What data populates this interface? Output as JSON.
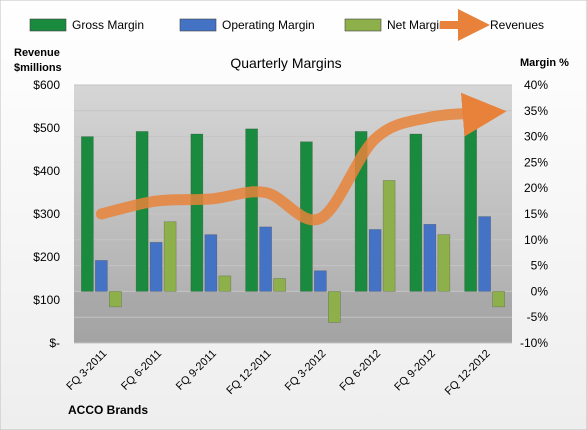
{
  "chart_data": {
    "type": "bar",
    "title": "Quarterly Margins",
    "company": "ACCO Brands",
    "left_axis_label": [
      "Revenue",
      "$millions"
    ],
    "right_axis_label": "Margin %",
    "left_ticks": [
      "$-",
      "$100",
      "$200",
      "$300",
      "$400",
      "$500",
      "$600"
    ],
    "right_ticks": [
      "-10%",
      "-5%",
      "0%",
      "5%",
      "10%",
      "15%",
      "20%",
      "25%",
      "30%",
      "35%",
      "40%"
    ],
    "ylim_left": [
      0,
      600
    ],
    "ylim_right": [
      -10,
      40
    ],
    "categories": [
      "FQ 3-2011",
      "FQ 6-2011",
      "FQ 9-2011",
      "FQ 12-2011",
      "FQ 3-2012",
      "FQ 6-2012",
      "FQ 9-2012",
      "FQ 12-2012"
    ],
    "series": [
      {
        "name": "Gross Margin",
        "axis": "right",
        "kind": "bar",
        "color": "#1a8a3e",
        "values": [
          30,
          31,
          30.5,
          31.5,
          29,
          31,
          30.5,
          33
        ]
      },
      {
        "name": "Operating Margin",
        "axis": "right",
        "kind": "bar",
        "color": "#4472c4",
        "values": [
          6,
          9.5,
          11,
          12.5,
          4,
          12,
          13,
          14.5
        ]
      },
      {
        "name": "Net Margin",
        "axis": "right",
        "kind": "bar",
        "color": "#8db04a",
        "values": [
          -3,
          13.5,
          3,
          2.5,
          -6,
          21.5,
          11,
          -3
        ]
      },
      {
        "name": "Revenues",
        "axis": "left",
        "kind": "line",
        "color": "#e8823a",
        "values": [
          300,
          330,
          335,
          350,
          290,
          475,
          525,
          535
        ]
      }
    ],
    "legend_position": "top",
    "grid": true
  }
}
